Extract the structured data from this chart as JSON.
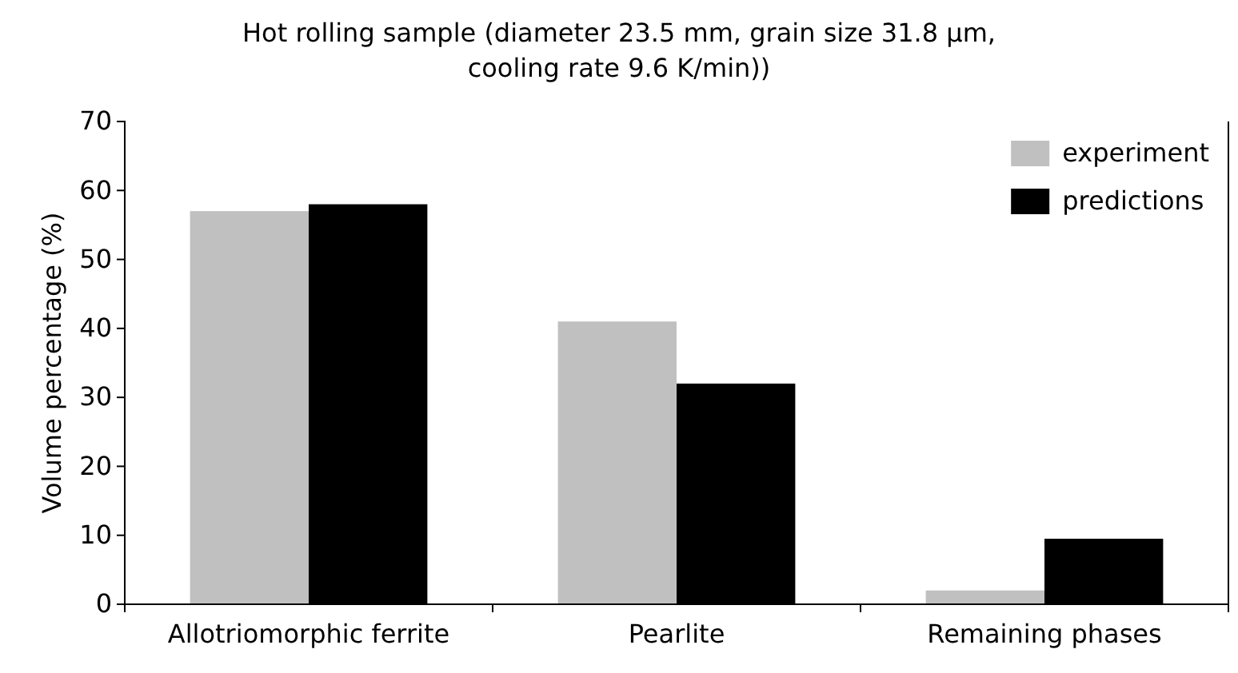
{
  "chart_data": {
    "type": "bar",
    "title": "Hot rolling sample (diameter 23.5 mm, grain size 31.8 µm, cooling rate 9.6 K/min))",
    "ylabel": "Volume percentage (%)",
    "categories": [
      "Allotriomorphic ferrite",
      "Pearlite",
      "Remaining phases"
    ],
    "series": [
      {
        "name": "experiment",
        "color": "#c0c0c0",
        "values": [
          57,
          41,
          2
        ]
      },
      {
        "name": "predictions",
        "color": "#000000",
        "values": [
          58,
          32,
          9.5
        ]
      }
    ],
    "ylim": [
      0,
      70
    ],
    "yticks": [
      0,
      10,
      20,
      30,
      40,
      50,
      60,
      70
    ],
    "grid": false,
    "legend": "top right"
  }
}
